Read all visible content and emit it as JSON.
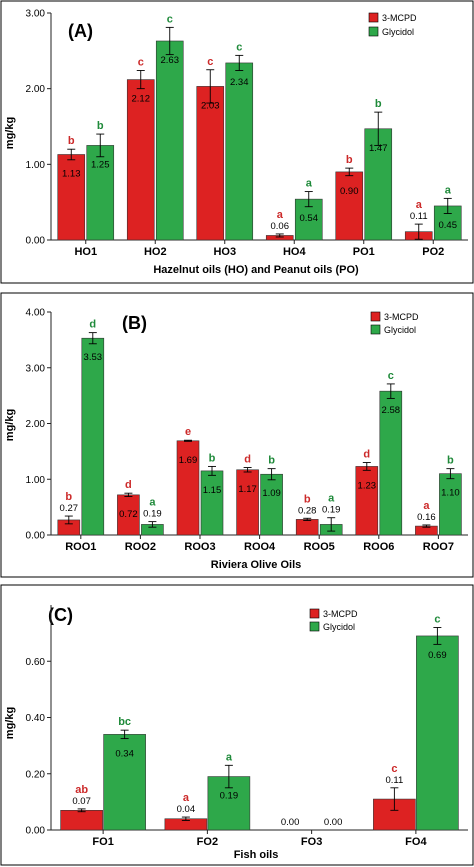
{
  "colors": {
    "mcpd": "#dd2222",
    "glycidol": "#2ea84a",
    "letter_red": "#cc2a2a",
    "letter_green": "#1f8a3a",
    "axis": "#222222"
  },
  "chart_data": [
    {
      "type": "bar",
      "panel_label": "(A)",
      "title": "",
      "xlabel": "Hazelnut oils (HO) and Peanut oils (PO)",
      "ylabel": "mg/kg",
      "ylim": [
        0,
        3.0
      ],
      "yticks": [
        "0.00",
        "1.00",
        "2.00",
        "3.00"
      ],
      "ytick_values": [
        0,
        1,
        2,
        3
      ],
      "legend_position": "top-right",
      "categories": [
        "HO1",
        "HO2",
        "HO3",
        "HO4",
        "PO1",
        "PO2"
      ],
      "series": [
        {
          "name": "3-MCPD",
          "values": [
            1.13,
            2.12,
            2.03,
            0.06,
            0.9,
            0.11
          ],
          "labels": [
            "1.13",
            "2.12",
            "2.03",
            "0.06",
            "0.90",
            "0.11"
          ],
          "errors": [
            0.07,
            0.12,
            0.22,
            0.02,
            0.05,
            0.1
          ],
          "letters": [
            "b",
            "c",
            "c",
            "a",
            "b",
            "a"
          ]
        },
        {
          "name": "Glycidol",
          "values": [
            1.25,
            2.63,
            2.34,
            0.54,
            1.47,
            0.45
          ],
          "labels": [
            "1.25",
            "2.63",
            "2.34",
            "0.54",
            "1.47",
            "0.45"
          ],
          "errors": [
            0.15,
            0.18,
            0.1,
            0.1,
            0.22,
            0.1
          ],
          "letters": [
            "b",
            "c",
            "c",
            "a",
            "b",
            "a"
          ]
        }
      ]
    },
    {
      "type": "bar",
      "panel_label": "(B)",
      "title": "",
      "xlabel": "Riviera Olive Oils",
      "ylabel": "mg/kg",
      "ylim": [
        0,
        4.0
      ],
      "yticks": [
        "0.00",
        "1.00",
        "2.00",
        "3.00",
        "4.00"
      ],
      "ytick_values": [
        0,
        1,
        2,
        3,
        4
      ],
      "legend_position": "top-right",
      "categories": [
        "ROO1",
        "ROO2",
        "ROO3",
        "ROO4",
        "ROO5",
        "ROO6",
        "ROO7"
      ],
      "series": [
        {
          "name": "3-MCPD",
          "values": [
            0.27,
            0.72,
            1.69,
            1.17,
            0.28,
            1.23,
            0.16
          ],
          "labels": [
            "0.27",
            "0.72",
            "1.69",
            "1.17",
            "0.28",
            "1.23",
            "0.16"
          ],
          "errors": [
            0.07,
            0.03,
            0.01,
            0.04,
            0.02,
            0.07,
            0.02
          ],
          "letters": [
            "b",
            "d",
            "e",
            "d",
            "b",
            "d",
            "a"
          ]
        },
        {
          "name": "Glycidol",
          "values": [
            3.53,
            0.19,
            1.15,
            1.09,
            0.19,
            2.58,
            1.1
          ],
          "labels": [
            "3.53",
            "0.19",
            "1.15",
            "1.09",
            "0.19",
            "2.58",
            "1.10"
          ],
          "errors": [
            0.1,
            0.05,
            0.08,
            0.1,
            0.12,
            0.13,
            0.09
          ],
          "letters": [
            "d",
            "a",
            "b",
            "b",
            "a",
            "c",
            "b"
          ]
        }
      ]
    },
    {
      "type": "bar",
      "panel_label": "(C)",
      "title": "",
      "xlabel": "Fish oils",
      "ylabel": "mg/kg",
      "ylim": [
        0,
        0.8
      ],
      "yticks": [
        "0.00",
        "0.20",
        "0.40",
        "0.60"
      ],
      "ytick_values": [
        0,
        0.2,
        0.4,
        0.6
      ],
      "legend_position": "top-center",
      "categories": [
        "FO1",
        "FO2",
        "FO3",
        "FO4"
      ],
      "series": [
        {
          "name": "3-MCPD",
          "values": [
            0.07,
            0.04,
            0.0,
            0.11
          ],
          "labels": [
            "0.07",
            "0.04",
            "0.00",
            "0.11"
          ],
          "errors": [
            0.005,
            0.006,
            0.0,
            0.04
          ],
          "letters": [
            "ab",
            "a",
            "",
            "c"
          ]
        },
        {
          "name": "Glycidol",
          "values": [
            0.34,
            0.19,
            0.0,
            0.69
          ],
          "labels": [
            "0.34",
            "0.19",
            "0.00",
            "0.69"
          ],
          "errors": [
            0.015,
            0.04,
            0.0,
            0.03
          ],
          "letters": [
            "bc",
            "a",
            "",
            "c"
          ]
        }
      ]
    }
  ]
}
